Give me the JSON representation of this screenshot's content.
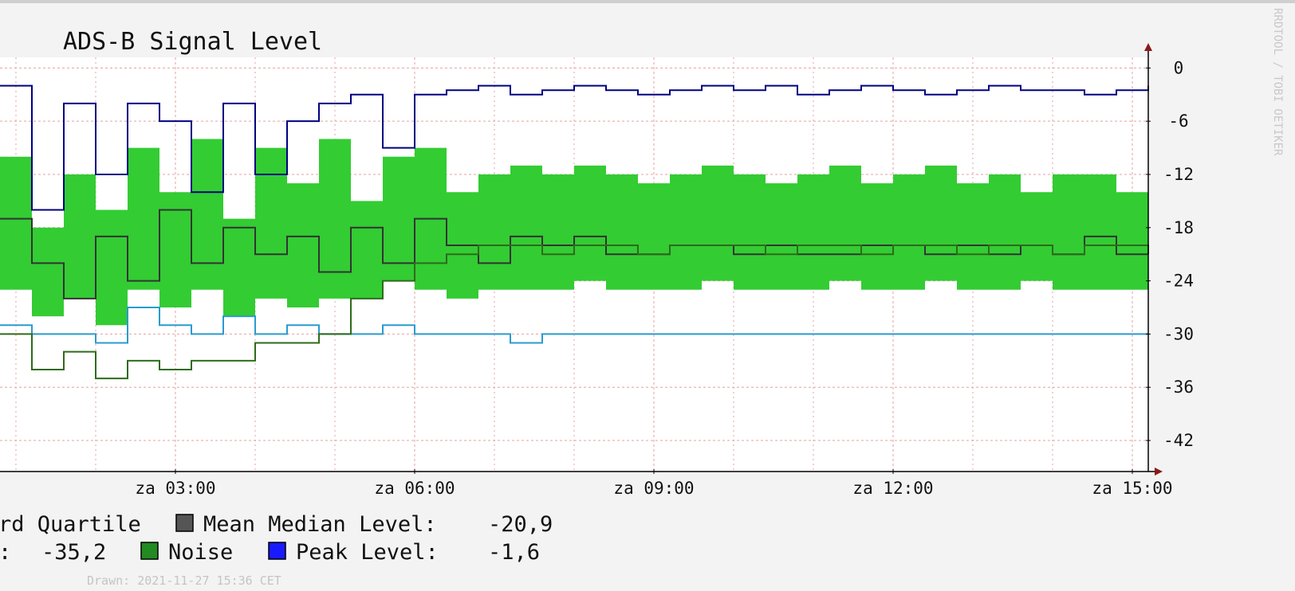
{
  "page": {
    "watermark": "RRDTOOL / TOBI OETIKER",
    "drawn": "Drawn: 2021-11-27 15:36 CET"
  },
  "legend": {
    "row1": [
      {
        "swatch": false,
        "label": "rd Quartile"
      },
      {
        "swatch": true,
        "color": "#555555",
        "label": "Mean Median Level:"
      },
      {
        "swatch": false,
        "label": "-20,9"
      }
    ],
    "row2": [
      {
        "swatch": false,
        "label": ":"
      },
      {
        "swatch": false,
        "label": "-35,2"
      },
      {
        "swatch": true,
        "color": "#228b22",
        "label": "Noise"
      },
      {
        "swatch": true,
        "color": "#1a1aff",
        "label": "Peak Level:"
      },
      {
        "swatch": false,
        "label": "-1,6"
      }
    ]
  },
  "colors": {
    "background": "#f3f3f3",
    "plot_bg": "#ffffff",
    "grid": "#e6a0a0",
    "axis": "#000000",
    "arrow": "#8b1a1a",
    "band": "#33cc33",
    "peak": "#000080",
    "noise_line": "#2a9bd0",
    "lower_noise_line": "#2e6b1a",
    "mean": "#333333"
  },
  "chart_data": {
    "type": "line",
    "title": "ADS-B Signal Level",
    "xlabel": "",
    "ylabel": "",
    "x_tick_labels": [
      "za 03:00",
      "za 06:00",
      "za 09:00",
      "za 12:00",
      "za 15:00"
    ],
    "x_tick_hours": [
      3,
      6,
      9,
      12,
      15
    ],
    "xlim_hours": [
      0.8,
      15.2
    ],
    "y_ticks": [
      0,
      -6,
      -12,
      -18,
      -24,
      -30,
      -36,
      -42
    ],
    "ylim": [
      -45.5,
      1.2
    ],
    "grid": true,
    "x": [
      0.8,
      1.2,
      1.6,
      2.0,
      2.4,
      2.8,
      3.2,
      3.6,
      4.0,
      4.4,
      4.8,
      5.2,
      5.6,
      6.0,
      6.4,
      6.8,
      7.2,
      7.6,
      8.0,
      8.4,
      8.8,
      9.2,
      9.6,
      10.0,
      10.4,
      10.8,
      11.2,
      11.6,
      12.0,
      12.4,
      12.8,
      13.2,
      13.6,
      14.0,
      14.4,
      14.8,
      15.2
    ],
    "series": [
      {
        "name": "Peak Level",
        "color": "#000080",
        "values": [
          -2,
          -16,
          -4,
          -12,
          -4,
          -6,
          -14,
          -4,
          -12,
          -6,
          -4,
          -3,
          -9,
          -3,
          -2.5,
          -2,
          -3,
          -2.5,
          -2,
          -2.5,
          -3,
          -2.5,
          -2,
          -2.5,
          -2,
          -3,
          -2.5,
          -2,
          -2.5,
          -3,
          -2.5,
          -2,
          -2.5,
          -2.5,
          -3,
          -2.5,
          -2
        ]
      },
      {
        "name": "Noise band upper",
        "color": "#33cc33",
        "values": [
          -10,
          -18,
          -12,
          -16,
          -9,
          -14,
          -8,
          -17,
          -9,
          -13,
          -8,
          -15,
          -10,
          -9,
          -14,
          -12,
          -11,
          -12,
          -11,
          -12,
          -13,
          -12,
          -11,
          -12,
          -13,
          -12,
          -11,
          -13,
          -12,
          -11,
          -13,
          -12,
          -14,
          -12,
          -12,
          -14,
          -15
        ]
      },
      {
        "name": "Noise band lower",
        "color": "#33cc33",
        "values": [
          -25,
          -28,
          -26,
          -29,
          -25,
          -27,
          -25,
          -28,
          -26,
          -27,
          -26,
          -26,
          -24,
          -25,
          -26,
          -25,
          -25,
          -25,
          -24,
          -25,
          -25,
          -25,
          -24,
          -25,
          -25,
          -25,
          -24,
          -25,
          -25,
          -24,
          -25,
          -25,
          -24,
          -25,
          -25,
          -25,
          -25
        ]
      },
      {
        "name": "Mean Median Level",
        "color": "#333333",
        "values": [
          -17,
          -22,
          -26,
          -19,
          -24,
          -16,
          -22,
          -18,
          -21,
          -19,
          -23,
          -18,
          -22,
          -17,
          -20,
          -22,
          -19,
          -20,
          -19,
          -21,
          -21,
          -20,
          -20,
          -21,
          -20,
          -21,
          -21,
          -20,
          -20,
          -21,
          -20,
          -21,
          -20,
          -21,
          -19,
          -21,
          -21
        ]
      },
      {
        "name": "Noise Level",
        "color": "#2a9bd0",
        "values": [
          -29,
          -30,
          -30,
          -31,
          -27,
          -29,
          -30,
          -28,
          -30,
          -29,
          -30,
          -30,
          -29,
          -30,
          -30,
          -30,
          -31,
          -30,
          -30,
          -30,
          -30,
          -30,
          -30,
          -30,
          -30,
          -30,
          -30,
          -30,
          -30,
          -30,
          -30,
          -30,
          -30,
          -30,
          -30,
          -30,
          -30
        ]
      },
      {
        "name": "Noise",
        "color": "#2e6b1a",
        "values": [
          -30,
          -34,
          -32,
          -35,
          -33,
          -34,
          -33,
          -33,
          -31,
          -31,
          -30,
          -26,
          -24,
          -22,
          -21,
          -20,
          -20,
          -21,
          -20,
          -20,
          -21,
          -20,
          -20,
          -20,
          -21,
          -20,
          -20,
          -21,
          -20,
          -20,
          -21,
          -20,
          -20,
          -21,
          -20,
          -20,
          -21
        ]
      }
    ]
  }
}
